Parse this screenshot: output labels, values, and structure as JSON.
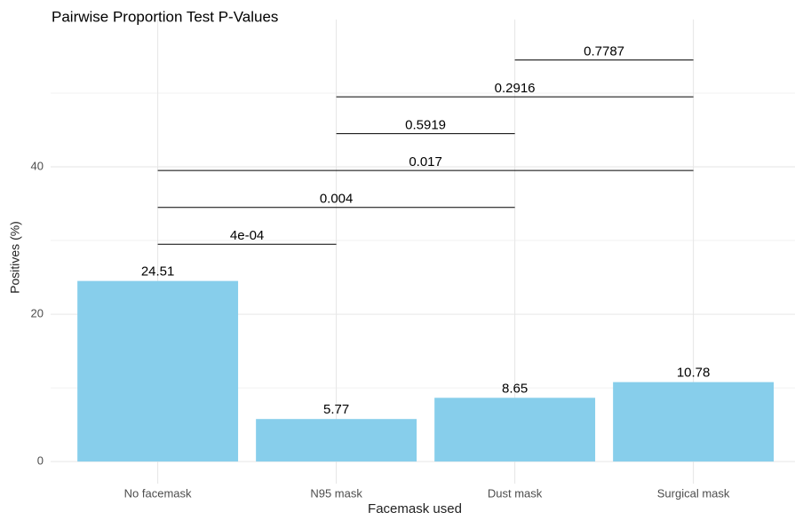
{
  "chart_data": {
    "type": "bar",
    "title": "Pairwise Proportion Test P-Values",
    "x_label": "Facemask used",
    "y_label": "Positives (%)",
    "categories": [
      "No facemask",
      "N95 mask",
      "Dust mask",
      "Surgical mask"
    ],
    "values": [
      24.51,
      5.77,
      8.65,
      10.78
    ],
    "color": "#87ceeb",
    "ylim": [
      -3,
      60
    ],
    "yticks": [
      0,
      20,
      40
    ],
    "y_minor_ticks": [
      10,
      30,
      50
    ],
    "grid": true,
    "comparisons": [
      {
        "group1": "No facemask",
        "group2": "N95 mask",
        "y": 29.5,
        "label": "4e-04"
      },
      {
        "group1": "No facemask",
        "group2": "Dust mask",
        "y": 34.5,
        "label": "0.004"
      },
      {
        "group1": "No facemask",
        "group2": "Surgical mask",
        "y": 39.5,
        "label": "0.017"
      },
      {
        "group1": "N95 mask",
        "group2": "Dust mask",
        "y": 44.5,
        "label": "0.5919"
      },
      {
        "group1": "N95 mask",
        "group2": "Surgical mask",
        "y": 49.5,
        "label": "0.2916"
      },
      {
        "group1": "Dust mask",
        "group2": "Surgical mask",
        "y": 54.5,
        "label": "0.7787"
      }
    ]
  }
}
